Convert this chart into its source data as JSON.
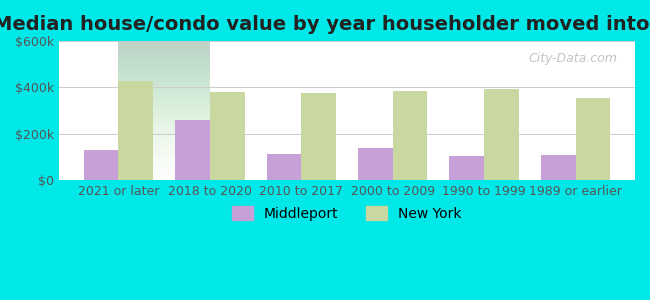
{
  "title": "Median house/condo value by year householder moved into unit",
  "categories": [
    "2021 or later",
    "2018 to 2020",
    "2010 to 2017",
    "2000 to 2009",
    "1990 to 1999",
    "1989 or earlier"
  ],
  "middleport_values": [
    130000,
    260000,
    115000,
    140000,
    105000,
    110000
  ],
  "newyork_values": [
    430000,
    380000,
    375000,
    385000,
    395000,
    355000
  ],
  "middleport_color": "#c8a0d8",
  "newyork_color": "#c8d8a0",
  "background_color": "#00e8e8",
  "plot_bg_gradient_top": "#e8f8e8",
  "plot_bg_gradient_bottom": "#ffffff",
  "ylim": [
    0,
    600000
  ],
  "yticks": [
    0,
    200000,
    400000,
    600000
  ],
  "ytick_labels": [
    "$0",
    "$200k",
    "$400k",
    "$600k"
  ],
  "legend_labels": [
    "Middleport",
    "New York"
  ],
  "watermark": "City-Data.com",
  "bar_width": 0.38,
  "title_fontsize": 14,
  "tick_fontsize": 9,
  "legend_fontsize": 10
}
